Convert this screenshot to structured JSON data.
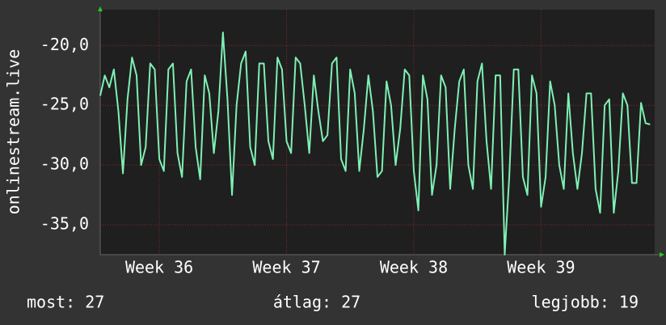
{
  "chart_data": {
    "type": "line",
    "y_label": "onlinestream.live",
    "x": [
      0,
      0.25,
      0.5,
      0.75,
      1,
      1.25,
      1.5,
      1.75,
      2,
      2.25,
      2.5,
      2.75,
      3,
      3.25,
      3.5,
      3.75,
      4,
      4.25,
      4.5,
      4.75,
      5,
      5.25,
      5.5,
      5.75,
      6,
      6.25,
      6.5,
      6.75,
      7,
      7.25,
      7.5,
      7.75,
      8,
      8.25,
      8.5,
      8.75,
      9,
      9.25,
      9.5,
      9.75,
      10,
      10.25,
      10.5,
      10.75,
      11,
      11.25,
      11.5,
      11.75,
      12,
      12.25,
      12.5,
      12.75,
      13,
      13.25,
      13.5,
      13.75,
      14,
      14.25,
      14.5,
      14.75,
      15,
      15.25,
      15.5,
      15.75,
      16,
      16.25,
      16.5,
      16.75,
      17,
      17.25,
      17.5,
      17.75,
      18,
      18.25,
      18.5,
      18.75,
      19,
      19.25,
      19.5,
      19.75,
      20,
      20.25,
      20.5,
      20.75,
      21,
      21.25,
      21.5,
      21.75,
      22,
      22.25,
      22.5,
      22.75,
      23,
      23.25,
      23.5,
      23.75,
      24,
      24.25,
      24.5,
      24.75,
      25,
      25.25,
      25.5,
      25.75,
      26,
      26.25,
      26.5,
      26.75,
      27,
      27.25,
      27.5,
      27.75,
      28,
      28.25,
      28.5,
      28.75,
      29,
      29.25,
      29.5,
      29.75,
      30,
      30.25
    ],
    "series": [
      {
        "color": "#7ff0b4",
        "values": [
          -24.2,
          -22.5,
          -23.5,
          -22.0,
          -25.5,
          -30.7,
          -24.5,
          -21.0,
          -22.5,
          -30.0,
          -28.5,
          -21.5,
          -22.0,
          -29.5,
          -30.5,
          -22.0,
          -21.5,
          -29.0,
          -31.0,
          -23.0,
          -22.0,
          -28.5,
          -31.2,
          -22.5,
          -24.0,
          -29.0,
          -25.5,
          -18.9,
          -24.5,
          -32.5,
          -25.0,
          -21.5,
          -20.5,
          -28.5,
          -30.0,
          -21.5,
          -21.5,
          -28.0,
          -29.5,
          -21.0,
          -22.0,
          -28.0,
          -29.0,
          -21.0,
          -21.5,
          -25.0,
          -29.0,
          -22.5,
          -25.5,
          -28.0,
          -27.5,
          -21.5,
          -21.0,
          -29.5,
          -30.5,
          -22.0,
          -24.0,
          -30.5,
          -27.0,
          -22.5,
          -25.5,
          -31.0,
          -30.5,
          -23.0,
          -25.0,
          -30.0,
          -27.0,
          -22.0,
          -22.5,
          -30.5,
          -33.8,
          -22.5,
          -24.5,
          -32.5,
          -30.0,
          -22.5,
          -23.5,
          -32.0,
          -27.0,
          -23.0,
          -22.0,
          -30.0,
          -32.0,
          -23.0,
          -21.5,
          -28.0,
          -32.0,
          -22.5,
          -22.5,
          -37.5,
          -31.0,
          -22.0,
          -22.0,
          -31.0,
          -32.5,
          -22.5,
          -24.0,
          -33.5,
          -31.0,
          -23.0,
          -25.0,
          -30.0,
          -32.0,
          -24.0,
          -29.0,
          -32.0,
          -29.0,
          -24.0,
          -24.0,
          -32.0,
          -34.0,
          -25.0,
          -24.5,
          -34.0,
          -30.5,
          -24.0,
          -25.0,
          -31.5,
          -31.5,
          -24.8,
          -26.5,
          -26.6
        ]
      }
    ],
    "xlim": [
      0,
      30.5
    ],
    "xticks": [
      {
        "value": 3.25,
        "label": "Week 36"
      },
      {
        "value": 10.25,
        "label": "Week 37"
      },
      {
        "value": 17.25,
        "label": "Week 38"
      },
      {
        "value": 24.25,
        "label": "Week 39"
      }
    ],
    "ylim": [
      -37.5,
      -17
    ],
    "yticks": [
      {
        "value": -35,
        "label": "-35,0"
      },
      {
        "value": -30,
        "label": "-30,0"
      },
      {
        "value": -25,
        "label": "-25,0"
      },
      {
        "value": -20,
        "label": "-20,0"
      }
    ],
    "grid": true,
    "footer": [
      "most: 27",
      "átlag: 27",
      "legjobb: 19"
    ]
  }
}
